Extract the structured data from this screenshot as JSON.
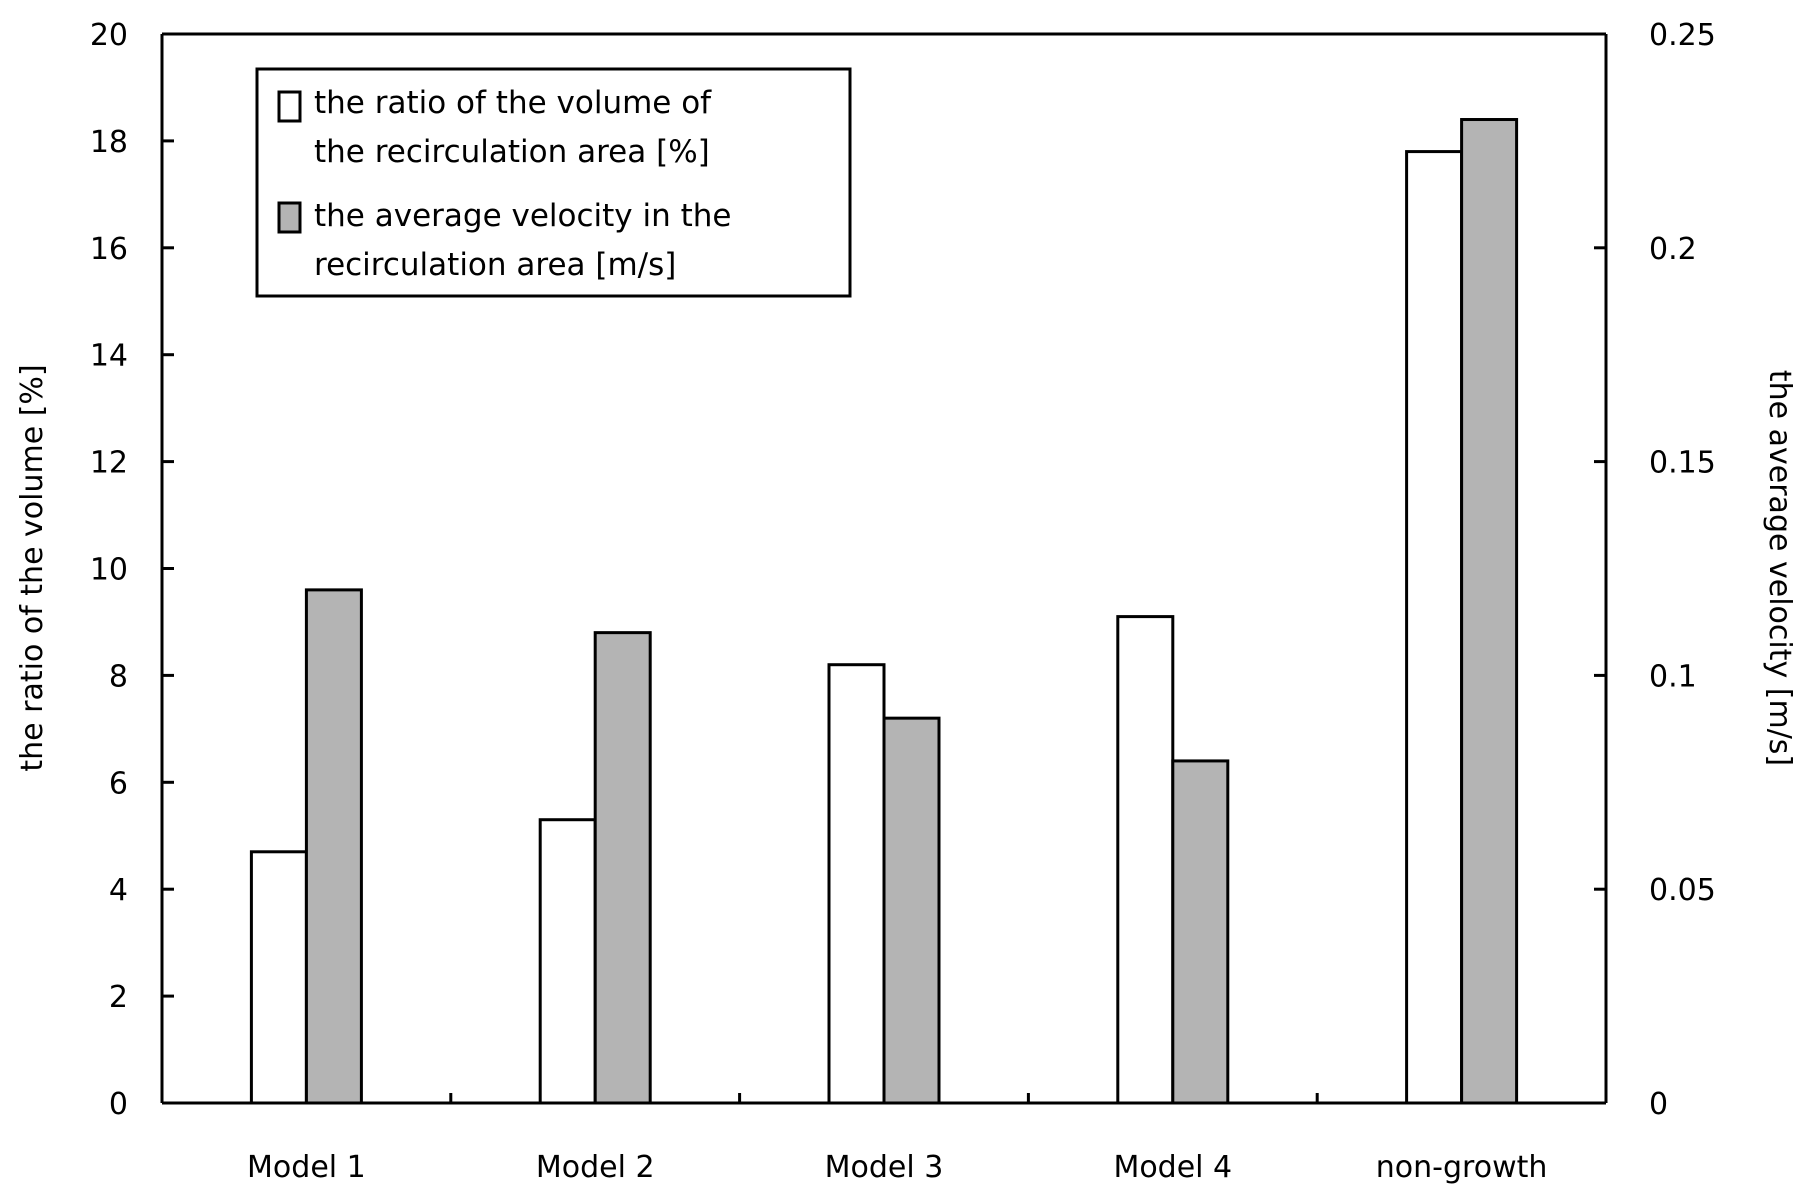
{
  "chart_data": {
    "type": "bar",
    "categories": [
      "Model 1",
      "Model 2",
      "Model 3",
      "Model 4",
      "non-growth"
    ],
    "series": [
      {
        "name": "the ratio of the volume of the recirculation area [%]",
        "legend_lines": [
          "the ratio of the volume of",
          "the recirculation area [%]"
        ],
        "axis": "left",
        "color": "#ffffff",
        "values": [
          4.7,
          5.3,
          8.2,
          9.1,
          17.8
        ]
      },
      {
        "name": "the average velocity in the recirculation area [m/s]",
        "legend_lines": [
          "the average velocity in the",
          "recirculation area [m/s]"
        ],
        "axis": "right",
        "color": "#b4b4b4",
        "values": [
          0.12,
          0.11,
          0.09,
          0.08,
          0.23
        ]
      }
    ],
    "ylabel_left": "the ratio of the volume [%]",
    "ylabel_right": "the average velocity [m/s]",
    "ylim_left": [
      0,
      20
    ],
    "yticks_left": [
      "0",
      "2",
      "4",
      "6",
      "8",
      "10",
      "12",
      "14",
      "16",
      "18",
      "20"
    ],
    "ylim_right": [
      0,
      0.25
    ],
    "yticks_right": [
      "0",
      "0.05",
      "0.1",
      "0.15",
      "0.2",
      "0.25"
    ],
    "grid": false,
    "legend_position": "top-left"
  }
}
